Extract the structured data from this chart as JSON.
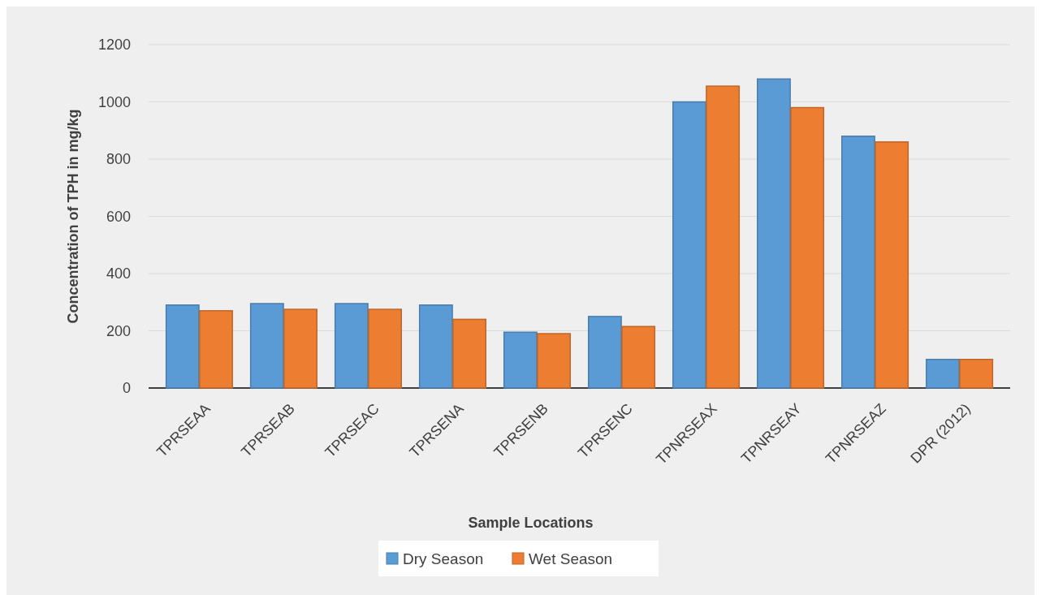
{
  "chart_data": {
    "type": "bar",
    "xlabel": "Sample Locations",
    "ylabel": "Concentration of TPH in mg/kg",
    "categories": [
      "TPRSEAA",
      "TPRSEAB",
      "TPRSEAC",
      "TPRSENA",
      "TPRSENB",
      "TPRSENC",
      "TPNRSEAX",
      "TPNRSEAY",
      "TPNRSEAZ",
      "DPR (2012)"
    ],
    "series": [
      {
        "name": "Dry Season",
        "color": "#5b9bd5",
        "values": [
          290,
          295,
          295,
          290,
          195,
          250,
          1000,
          1080,
          880,
          100
        ]
      },
      {
        "name": "Wet Season",
        "color": "#ed7d31",
        "values": [
          270,
          275,
          275,
          240,
          190,
          215,
          1055,
          980,
          860,
          100
        ]
      }
    ],
    "ylim": [
      0,
      1200
    ],
    "yticks": [
      0,
      200,
      400,
      600,
      800,
      1000,
      1200
    ],
    "grid": "y",
    "legend": "bottom"
  }
}
